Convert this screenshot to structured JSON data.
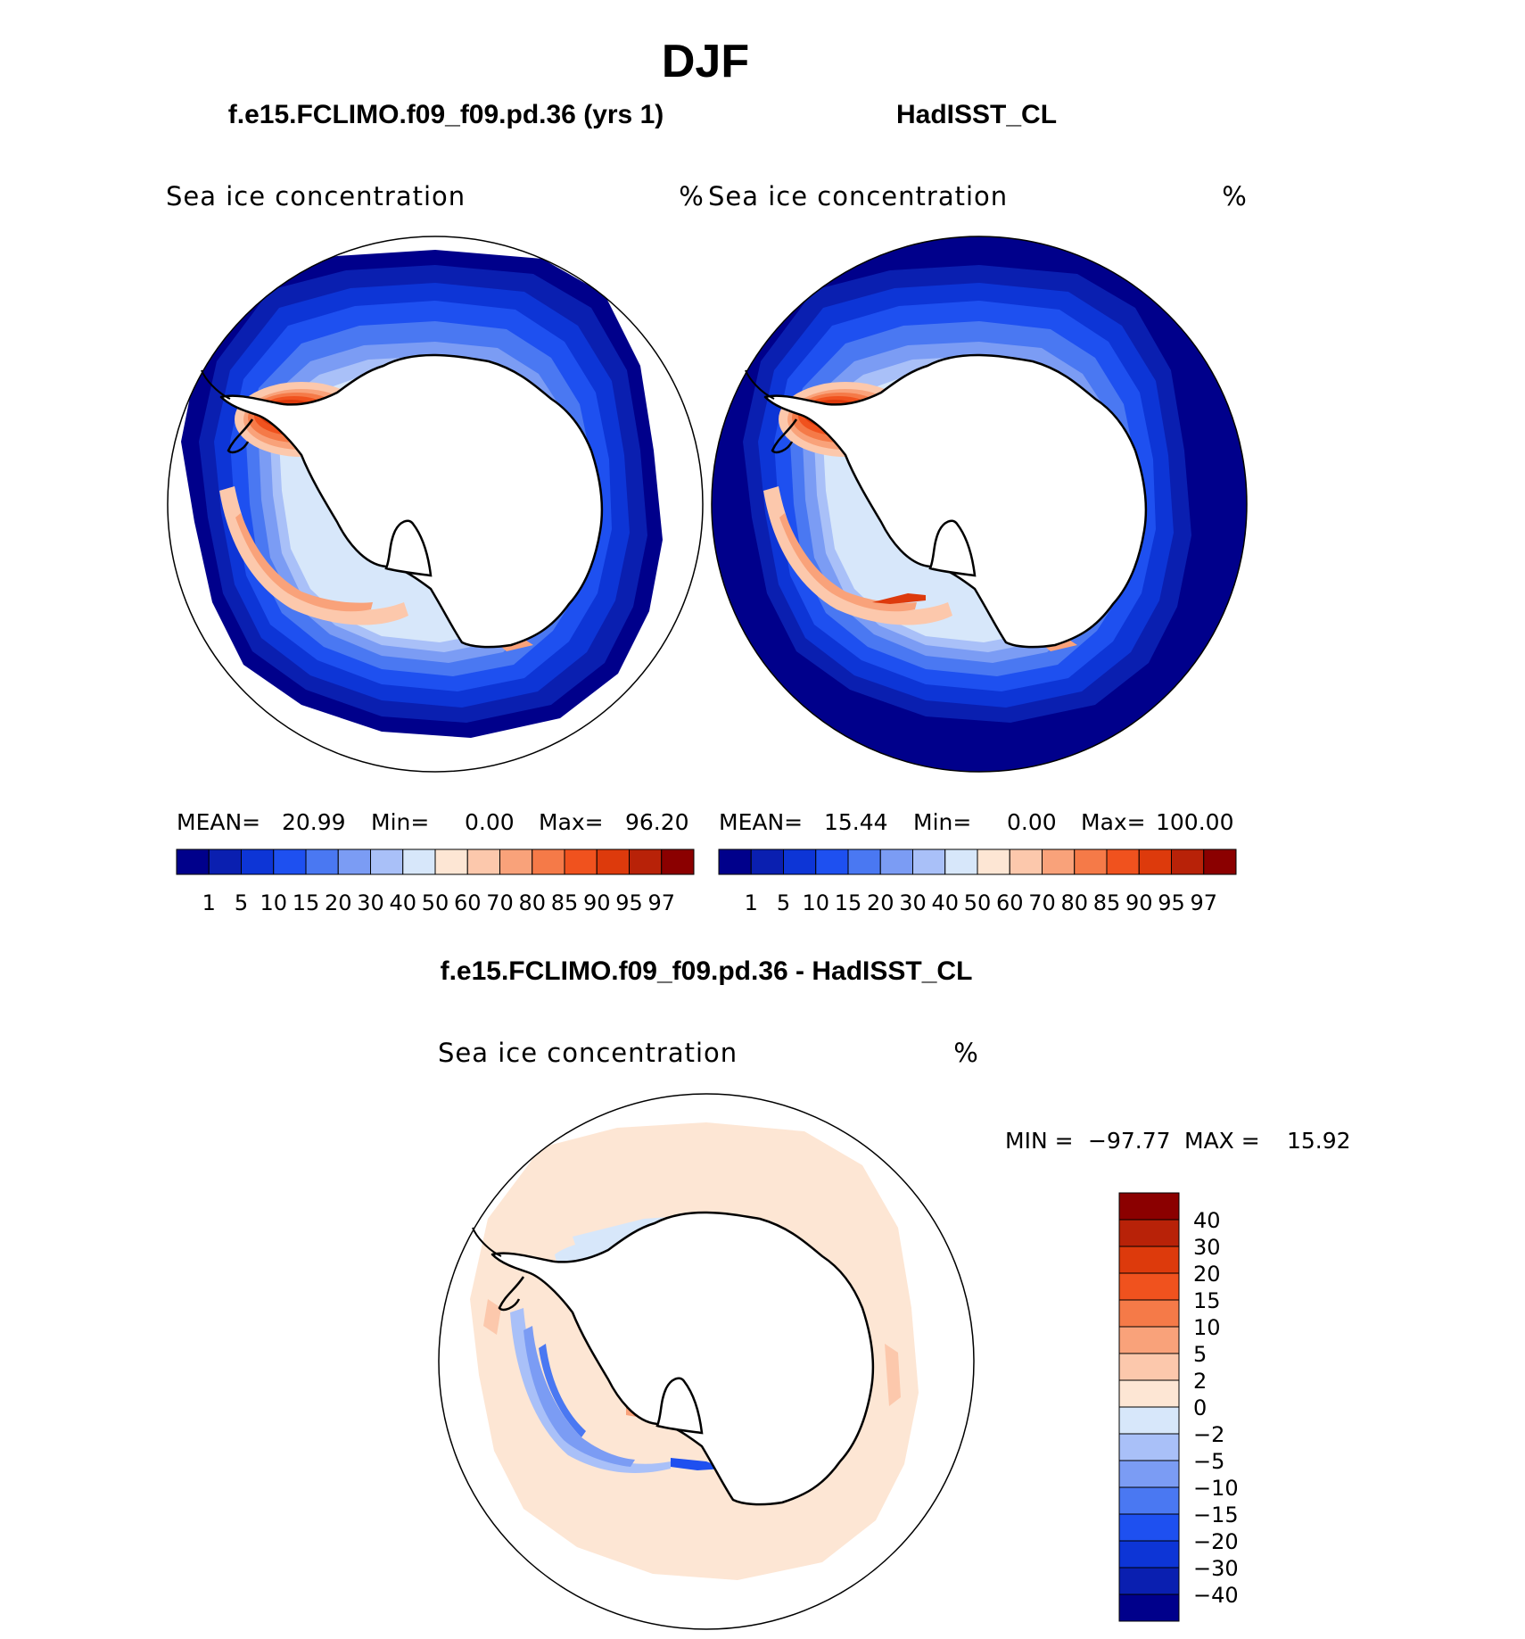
{
  "figure": {
    "season": "DJF",
    "left_title": "f.e15.FCLIMO.f09_f09.pd.36 (yrs 1)",
    "right_title": "HadISST_CL",
    "diff_title": "f.e15.FCLIMO.f09_f09.pd.36 - HadISST_CL"
  },
  "panels": [
    {
      "id": "model",
      "variable": "Sea ice concentration",
      "units": "%",
      "stats": {
        "mean_label": "MEAN=",
        "mean": "20.99",
        "min_label": "Min=",
        "min": "0.00",
        "max_label": "Max=",
        "max": "96.20"
      },
      "outside_fill": "none"
    },
    {
      "id": "obs",
      "variable": "Sea ice concentration",
      "units": "%",
      "stats": {
        "mean_label": "MEAN=",
        "mean": "15.44",
        "min_label": "Min=",
        "min": "0.00",
        "max_label": "Max=",
        "max": "100.00"
      },
      "outside_fill": "#00008b"
    }
  ],
  "diff_panel": {
    "variable": "Sea ice concentration",
    "units": "%",
    "min_label": "MIN =",
    "min": "−97.77",
    "max_label": "MAX =",
    "max": "15.92"
  },
  "colorbar_abs": {
    "labels": [
      "1",
      "5",
      "10",
      "15",
      "20",
      "30",
      "40",
      "50",
      "60",
      "70",
      "80",
      "85",
      "90",
      "95",
      "97"
    ],
    "colors": [
      "#00008b",
      "#0a1fb0",
      "#0d35d6",
      "#1e50f0",
      "#4a78f2",
      "#7b9cf4",
      "#a9c0f8",
      "#d7e7fa",
      "#fde6d4",
      "#fcc8ac",
      "#f9a27a",
      "#f57a48",
      "#f0521e",
      "#dd3a0c",
      "#b82208",
      "#8b0000"
    ]
  },
  "colorbar_diff": {
    "labels": [
      "40",
      "30",
      "20",
      "15",
      "10",
      "5",
      "2",
      "0",
      "−2",
      "−5",
      "−10",
      "−15",
      "−20",
      "−30",
      "−40"
    ],
    "colors": [
      "#8b0000",
      "#b82208",
      "#dd3a0c",
      "#f0521e",
      "#f57a48",
      "#f9a27a",
      "#fcc8ac",
      "#fde6d4",
      "#d7e7fa",
      "#a9c0f8",
      "#7b9cf4",
      "#4a78f2",
      "#1e50f0",
      "#0d35d6",
      "#0a1fb0",
      "#00008b"
    ]
  }
}
